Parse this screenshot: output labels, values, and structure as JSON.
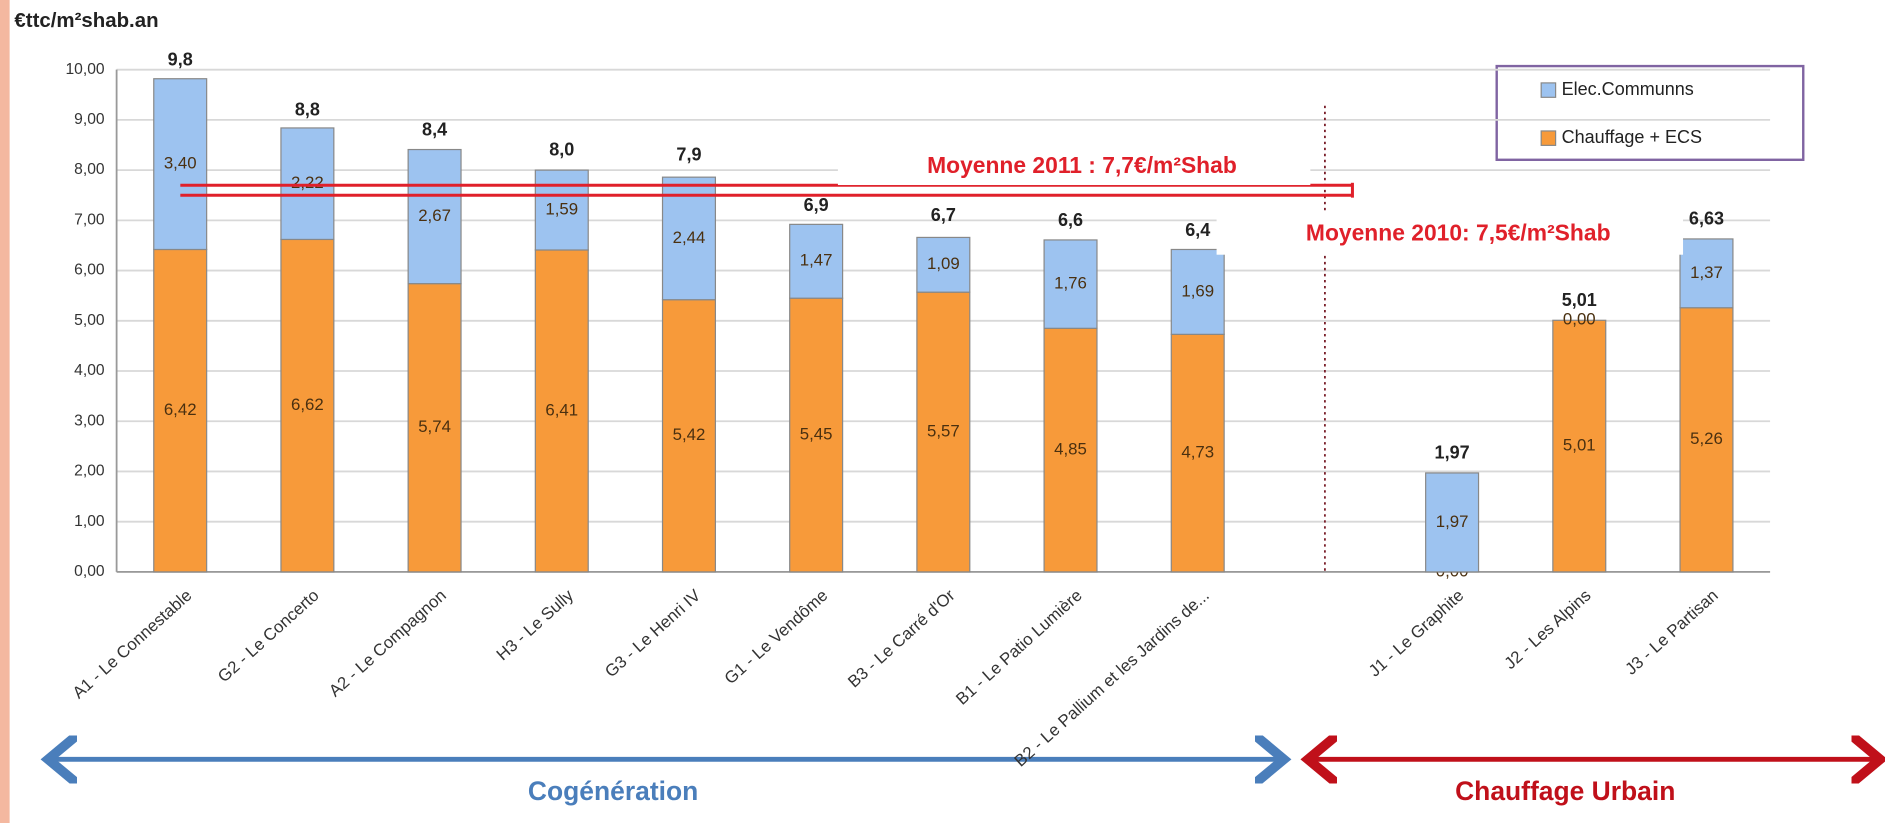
{
  "chart_data": {
    "type": "stacked_bar",
    "y_label": "€ttc/m²shab.an",
    "categories": [
      "A1 - Le Connestable",
      "G2 - Le Concerto",
      "A2 - Le Compagnon",
      "H3 - Le Sully",
      "G3 - Le Henri IV",
      "G1 - Le Vendôme",
      "B3 - Le Carré d'Or",
      "B1 - Le Patio Lumière",
      "B2 - Le Pallium et les Jardins de...",
      null,
      "J1 - Le Graphite",
      "J2 - Les Alpins",
      "J3 - Le Partisan"
    ],
    "series": [
      {
        "name": "Chauffage + ECS",
        "color": "#f79a3a",
        "values": [
          6.42,
          6.62,
          5.74,
          6.41,
          5.42,
          5.45,
          5.57,
          4.85,
          4.73,
          null,
          0,
          5.01,
          5.26
        ],
        "value_labels": [
          "6,42",
          "6,62",
          "5,74",
          "6,41",
          "5,42",
          "5,45",
          "5,57",
          "4,85",
          "4,73",
          null,
          "0,00",
          "5,01",
          "5,26"
        ]
      },
      {
        "name": "Elec.Communns",
        "color": "#9dc3f0",
        "values": [
          3.4,
          2.22,
          2.67,
          1.59,
          2.44,
          1.47,
          1.09,
          1.76,
          1.69,
          null,
          1.97,
          0,
          1.37
        ],
        "value_labels": [
          "3,40",
          "2,22",
          "2,67",
          "1,59",
          "2,44",
          "1,47",
          "1,09",
          "1,76",
          "1,69",
          null,
          "1,97",
          "0,00",
          "1,37"
        ]
      }
    ],
    "totals": {
      "values": [
        9.8,
        8.8,
        8.4,
        8.0,
        7.9,
        6.9,
        6.7,
        6.6,
        6.4,
        null,
        1.97,
        5.01,
        6.63
      ],
      "value_labels": [
        "9,8",
        "8,8",
        "8,4",
        "8,0",
        "7,9",
        "6,9",
        "6,7",
        "6,6",
        "6,4",
        null,
        "1,97",
        "5,01",
        "6,63"
      ]
    },
    "ylim": [
      0,
      10
    ],
    "yticks": [
      {
        "value": 0,
        "label": "0,00"
      },
      {
        "value": 1,
        "label": "1,00"
      },
      {
        "value": 2,
        "label": "2,00"
      },
      {
        "value": 3,
        "label": "3,00"
      },
      {
        "value": 4,
        "label": "4,00"
      },
      {
        "value": 5,
        "label": "5,00"
      },
      {
        "value": 6,
        "label": "6,00"
      },
      {
        "value": 7,
        "label": "7,00"
      },
      {
        "value": 8,
        "label": "8,00"
      },
      {
        "value": 9,
        "label": "9,00"
      },
      {
        "value": 10,
        "label": "10,00"
      }
    ],
    "grid": true,
    "legend": "upper right",
    "annotations": [
      {
        "text": "Moyenne 2011 : 7,7€/m²Shab",
        "value": 7.7
      },
      {
        "text": "Moyenne 2010: 7,5€/m²Shab",
        "value": 7.5
      }
    ],
    "groups": [
      {
        "label": "Cogénération",
        "color": "#4a7ebb"
      },
      {
        "label": "Chauffage Urbain",
        "color": "#c0101a"
      }
    ]
  }
}
